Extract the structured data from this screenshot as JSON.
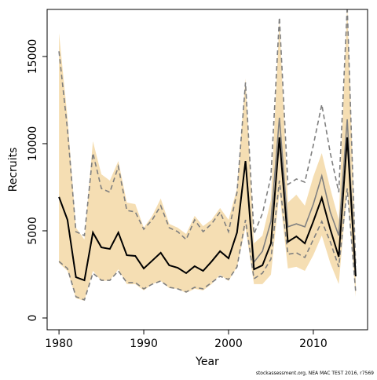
{
  "chart_data": {
    "type": "line",
    "xlabel": "Year",
    "ylabel": "Recruits",
    "footnote": "stockassessment.org, NEA MAC TEST 2016, r7569",
    "x": [
      1980,
      1981,
      1982,
      1983,
      1984,
      1985,
      1986,
      1987,
      1988,
      1989,
      1990,
      1991,
      1992,
      1993,
      1994,
      1995,
      1996,
      1997,
      1998,
      1999,
      2000,
      2001,
      2002,
      2003,
      2004,
      2005,
      2006,
      2007,
      2008,
      2009,
      2010,
      2011,
      2012,
      2013,
      2014,
      2015
    ],
    "xlim": [
      1978.6,
      2016.4
    ],
    "xticks": [
      1980,
      1990,
      2000,
      2010
    ],
    "ylim": [
      -676,
      17700
    ],
    "yticks": [
      0,
      5000,
      10000,
      15000
    ],
    "band": {
      "color": "#f5deb3",
      "upper": [
        16350,
        11490,
        5180,
        4500,
        10140,
        8240,
        7880,
        9000,
        6620,
        6530,
        5180,
        5860,
        6850,
        5400,
        5180,
        4820,
        5860,
        5270,
        5630,
        6310,
        5630,
        7430,
        13740,
        4280,
        4730,
        6760,
        17100,
        6620,
        7070,
        6440,
        8110,
        9460,
        7430,
        5630,
        18000,
        3600
      ],
      "lower": [
        3150,
        2700,
        1130,
        990,
        2700,
        2120,
        2160,
        2790,
        1940,
        1940,
        1580,
        1940,
        2120,
        1710,
        1670,
        1440,
        1670,
        1580,
        1940,
        2480,
        2120,
        2930,
        5180,
        1940,
        1940,
        2480,
        7210,
        2840,
        2930,
        2700,
        3600,
        4730,
        3150,
        1940,
        7430,
        1220
      ]
    },
    "series": [
      {
        "color": "#7f7f7f",
        "dash": true,
        "values": [
          15300,
          10810,
          4950,
          4730,
          9460,
          7430,
          7210,
          8690,
          6170,
          6080,
          5090,
          5630,
          6440,
          5180,
          4950,
          4500,
          5630,
          4950,
          5400,
          6080,
          4950,
          7210,
          13510,
          4820,
          5990,
          8110,
          17250,
          7660,
          7970,
          7790,
          9910,
          12250,
          9460,
          7210,
          17880,
          2930
        ]
      },
      {
        "color": "#7f7f7f",
        "dash": true,
        "values": [
          3240,
          2840,
          1220,
          1040,
          2570,
          2160,
          2160,
          2700,
          2030,
          2030,
          1670,
          1940,
          2120,
          1760,
          1670,
          1490,
          1760,
          1670,
          2030,
          2390,
          2210,
          2930,
          5630,
          2250,
          2570,
          3380,
          7880,
          3650,
          3740,
          3470,
          4500,
          5540,
          4370,
          2930,
          7430,
          1490
        ]
      },
      {
        "color": "#7f7f7f",
        "dash": false,
        "values": [
          6940,
          5630,
          2340,
          2160,
          4900,
          4050,
          3960,
          4900,
          3600,
          3560,
          2840,
          3290,
          3740,
          3020,
          2880,
          2570,
          2970,
          2700,
          3240,
          3830,
          3420,
          4900,
          9000,
          3200,
          3830,
          5540,
          11490,
          5230,
          5400,
          5230,
          6530,
          8150,
          6080,
          4730,
          11400,
          2390
        ]
      },
      {
        "color": "#000000",
        "dash": false,
        "values": [
          6940,
          5630,
          2340,
          2160,
          4900,
          4050,
          3960,
          4900,
          3600,
          3560,
          2840,
          3290,
          3740,
          3020,
          2880,
          2570,
          2970,
          2700,
          3240,
          3830,
          3420,
          4900,
          9000,
          2790,
          3020,
          4280,
          10360,
          4370,
          4680,
          4280,
          5540,
          6890,
          5090,
          3510,
          10360,
          2390
        ]
      }
    ]
  }
}
